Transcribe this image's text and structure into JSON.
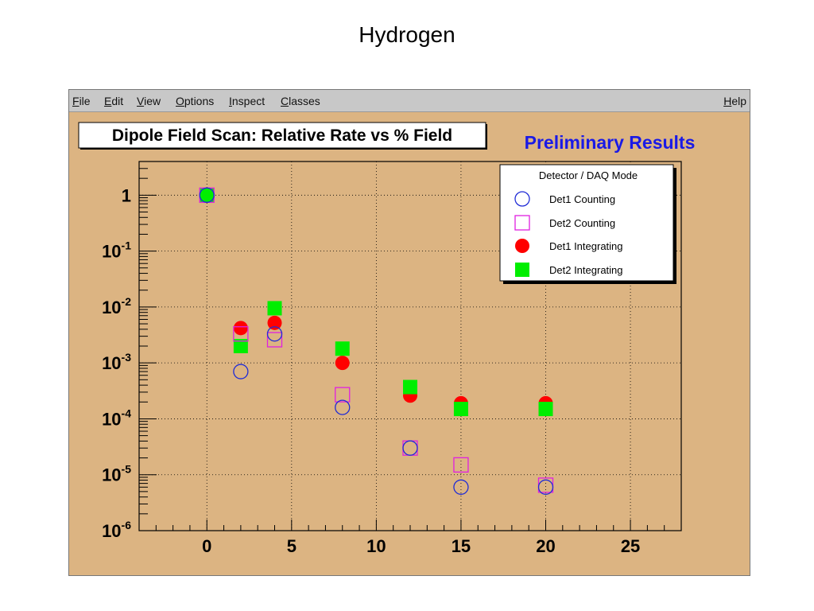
{
  "slide_title": "Hydrogen",
  "menu": {
    "items": [
      {
        "mnemonic": "F",
        "rest": "ile"
      },
      {
        "mnemonic": "E",
        "rest": "dit"
      },
      {
        "mnemonic": "V",
        "rest": "iew"
      },
      {
        "mnemonic": "O",
        "rest": "ptions"
      },
      {
        "mnemonic": "I",
        "rest": "nspect"
      },
      {
        "mnemonic": "C",
        "rest": "lasses"
      }
    ],
    "help": {
      "mnemonic": "H",
      "rest": "elp"
    }
  },
  "colors": {
    "canvas_bg": "#dcb482",
    "det1_counting": "#1f2bd6",
    "det2_counting": "#e020e0",
    "det1_integrating": "#ff0000",
    "det2_integrating": "#00ee00",
    "prelim_text": "#1a1ae6"
  },
  "chart_data": {
    "type": "scatter",
    "title": "Dipole Field Scan:  Relative Rate vs % Field",
    "annotation": "Preliminary Results",
    "xlim": [
      -4,
      28
    ],
    "ylim": [
      1e-06,
      4
    ],
    "yscale": "log",
    "grid": true,
    "x_ticks": [
      "0",
      "5",
      "10",
      "15",
      "20",
      "25"
    ],
    "y_ticks": [
      {
        "base": "1",
        "exp": ""
      },
      {
        "base": "10",
        "exp": "-1"
      },
      {
        "base": "10",
        "exp": "-2"
      },
      {
        "base": "10",
        "exp": "-3"
      },
      {
        "base": "10",
        "exp": "-4"
      },
      {
        "base": "10",
        "exp": "-5"
      },
      {
        "base": "10",
        "exp": "-6"
      }
    ],
    "legend": {
      "title": "Detector / DAQ Mode",
      "placement": "top-right"
    },
    "series": [
      {
        "name": "Det1 Counting",
        "marker": "open-circle",
        "x": [
          0,
          2,
          4,
          8,
          12,
          15,
          20
        ],
        "y": [
          1,
          0.0007,
          0.0033,
          0.00016,
          3e-05,
          6e-06,
          6e-06
        ]
      },
      {
        "name": "Det2 Counting",
        "marker": "open-square",
        "x": [
          0,
          2,
          4,
          8,
          12,
          15,
          20
        ],
        "y": [
          1,
          0.0033,
          0.0026,
          0.00027,
          3e-05,
          1.5e-05,
          6.5e-06
        ]
      },
      {
        "name": "Det1 Integrating",
        "marker": "filled-circle",
        "x": [
          0,
          2,
          4,
          8,
          12,
          15,
          20
        ],
        "y": [
          1,
          0.0042,
          0.0052,
          0.001,
          0.00026,
          0.00019,
          0.00019
        ]
      },
      {
        "name": "Det2 Integrating",
        "marker": "filled-square",
        "x": [
          0,
          2,
          4,
          8,
          12,
          15,
          20
        ],
        "y": [
          1,
          0.002,
          0.0095,
          0.0018,
          0.00037,
          0.00015,
          0.00015
        ]
      }
    ]
  }
}
